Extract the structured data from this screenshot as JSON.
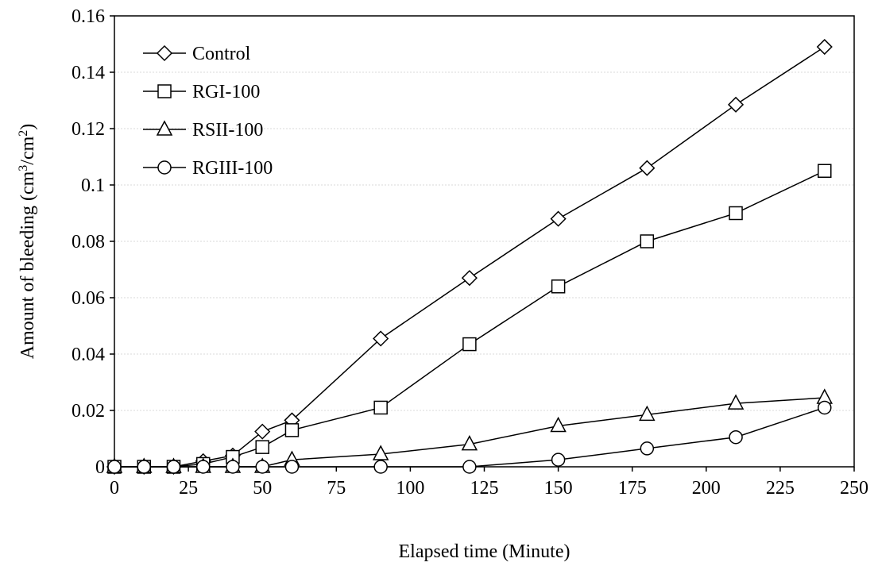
{
  "chart_data": {
    "type": "line",
    "xlabel": "Elapsed time (Minute)",
    "ylabel": "Amount of bleeding (cm3/cm2)",
    "ylabel_parts": [
      "Amount of bleeding (cm",
      "3",
      "/cm",
      "2",
      ")"
    ],
    "xlim": [
      0,
      250
    ],
    "ylim": [
      0,
      0.16
    ],
    "x_ticks": [
      0,
      25,
      50,
      75,
      100,
      125,
      150,
      175,
      200,
      225,
      250
    ],
    "x_tick_labels": [
      "0",
      "25",
      "50",
      "75",
      "100",
      "125",
      "150",
      "175",
      "200",
      "225",
      "250"
    ],
    "y_ticks": [
      0,
      0.02,
      0.04,
      0.06,
      0.08,
      0.1,
      0.12,
      0.14,
      0.16
    ],
    "y_tick_labels": [
      "0",
      "0.02",
      "0.04",
      "0.06",
      "0.08",
      "0.1",
      "0.12",
      "0.14",
      "0.16"
    ],
    "grid": "horizontal",
    "legend_position": "top-left",
    "series": [
      {
        "name": "Control",
        "marker": "diamond",
        "x": [
          0,
          10,
          20,
          30,
          40,
          50,
          60,
          90,
          120,
          150,
          180,
          210,
          240
        ],
        "y": [
          0,
          0,
          0,
          0.002,
          0.004,
          0.0125,
          0.0165,
          0.0455,
          0.067,
          0.088,
          0.106,
          0.1285,
          0.149
        ]
      },
      {
        "name": "RGI-100",
        "marker": "square",
        "x": [
          0,
          10,
          20,
          30,
          40,
          50,
          60,
          90,
          120,
          150,
          180,
          210,
          240
        ],
        "y": [
          0,
          0,
          0,
          0.001,
          0.0035,
          0.007,
          0.013,
          0.021,
          0.0435,
          0.064,
          0.08,
          0.09,
          0.105
        ]
      },
      {
        "name": "RSII-100",
        "marker": "triangle",
        "x": [
          0,
          10,
          20,
          30,
          40,
          50,
          60,
          90,
          120,
          150,
          180,
          210,
          240
        ],
        "y": [
          0,
          0,
          0,
          0,
          0,
          0,
          0.0025,
          0.0045,
          0.008,
          0.0145,
          0.0185,
          0.0225,
          0.0245
        ]
      },
      {
        "name": "RGIII-100",
        "marker": "circle",
        "x": [
          0,
          10,
          20,
          30,
          40,
          50,
          60,
          90,
          120,
          150,
          180,
          210,
          240
        ],
        "y": [
          0,
          0,
          0,
          0,
          0,
          0,
          0,
          0,
          0,
          0.0025,
          0.0065,
          0.0105,
          0.021
        ]
      }
    ]
  }
}
